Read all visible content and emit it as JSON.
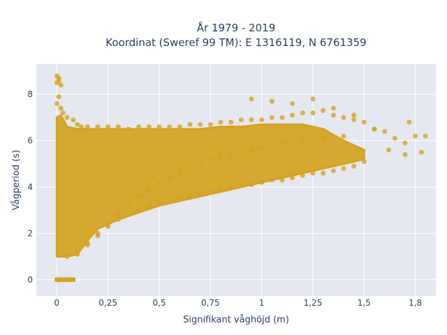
{
  "chart_data": {
    "type": "scatter",
    "title_line1": "År 1979 - 2019",
    "title_line2": "Koordinat (Sweref 99 TM): E 1316119, N 6761359",
    "xlabel": "Signifikant våghöjd (m)",
    "ylabel": "Vågperiod (s)",
    "xlim": [
      -0.1,
      1.85
    ],
    "ylim": [
      -0.7,
      9.3
    ],
    "x_ticks": [
      0,
      0.25,
      0.5,
      0.75,
      1,
      1.25,
      1.5,
      1.75
    ],
    "x_tick_labels": [
      "0",
      "0,25",
      "0,5",
      "0,75",
      "1",
      "1,25",
      "1,5",
      "1,8"
    ],
    "y_ticks": [
      0,
      2,
      4,
      6,
      8
    ],
    "y_tick_labels": [
      "0",
      "2",
      "4",
      "6",
      "8"
    ],
    "grid": true,
    "marker_color": "#D4A31F",
    "plot_background": "#E5E8F1",
    "series": [
      {
        "x": [
          0.0,
          0.01,
          0.02,
          0.03,
          0.04,
          0.05,
          0.06,
          0.07,
          0.08,
          0.0,
          0.01,
          0.0,
          0.01,
          0.02,
          0.01,
          0.0,
          0.02,
          0.03,
          0.05,
          0.08,
          0.1,
          0.12,
          0.15,
          0.2,
          0.25,
          0.3,
          0.35,
          0.4,
          0.45,
          0.5,
          0.55,
          0.6,
          0.65,
          0.7,
          0.75,
          0.8,
          0.85,
          0.9,
          0.95,
          1.0,
          1.05,
          1.1,
          1.15,
          1.2,
          1.25,
          1.3,
          1.35,
          1.4,
          1.45,
          1.5,
          1.55,
          1.6,
          1.65,
          1.7,
          1.75,
          1.8,
          0.1,
          0.15,
          0.2,
          0.25,
          0.3,
          0.35,
          0.4,
          0.45,
          0.5,
          0.55,
          0.6,
          0.65,
          0.7,
          0.75,
          0.8,
          0.85,
          0.9,
          0.95,
          1.0,
          1.05,
          1.1,
          1.15,
          1.2,
          1.25,
          1.3,
          1.35,
          1.4,
          1.45,
          1.5,
          0.05,
          0.1,
          0.15,
          0.2,
          0.25,
          0.3,
          0.35,
          0.4,
          0.45,
          0.5,
          0.55,
          0.6,
          0.65,
          0.7,
          0.75,
          0.8,
          0.85,
          0.9,
          0.95,
          1.0,
          1.1,
          1.2,
          1.3,
          1.4,
          0.95,
          1.05,
          1.15,
          1.25,
          1.35,
          1.45,
          1.55,
          1.62,
          1.7,
          1.72,
          1.78
        ],
        "y": [
          0,
          0,
          0,
          0,
          0,
          0,
          0,
          0,
          0,
          8.8,
          8.7,
          8.5,
          8.6,
          8.4,
          7.9,
          7.6,
          7.4,
          7.2,
          7.0,
          6.9,
          6.7,
          6.6,
          6.6,
          6.6,
          6.6,
          6.6,
          6.5,
          6.6,
          6.6,
          6.6,
          6.6,
          6.6,
          6.7,
          6.7,
          6.7,
          6.8,
          6.8,
          6.9,
          6.9,
          6.9,
          7.0,
          7.0,
          7.1,
          7.2,
          7.2,
          7.3,
          7.1,
          7.0,
          6.9,
          6.8,
          6.5,
          6.4,
          6.1,
          5.9,
          6.2,
          6.2,
          1.1,
          1.5,
          1.9,
          2.3,
          2.6,
          2.8,
          3.0,
          3.2,
          3.3,
          3.4,
          3.5,
          3.6,
          3.7,
          3.8,
          3.9,
          4.0,
          4.1,
          4.1,
          4.2,
          4.3,
          4.3,
          4.4,
          4.5,
          4.6,
          4.6,
          4.7,
          4.8,
          4.9,
          5.1,
          1.0,
          1.2,
          1.6,
          2.0,
          2.4,
          2.8,
          3.2,
          3.6,
          3.9,
          4.2,
          4.4,
          4.6,
          4.8,
          5.0,
          5.2,
          5.3,
          5.4,
          5.5,
          5.6,
          5.7,
          5.9,
          6.0,
          6.1,
          6.2,
          7.8,
          7.7,
          7.6,
          7.8,
          7.4,
          7.1,
          6.5,
          5.6,
          5.4,
          6.8,
          5.5
        ]
      }
    ]
  }
}
